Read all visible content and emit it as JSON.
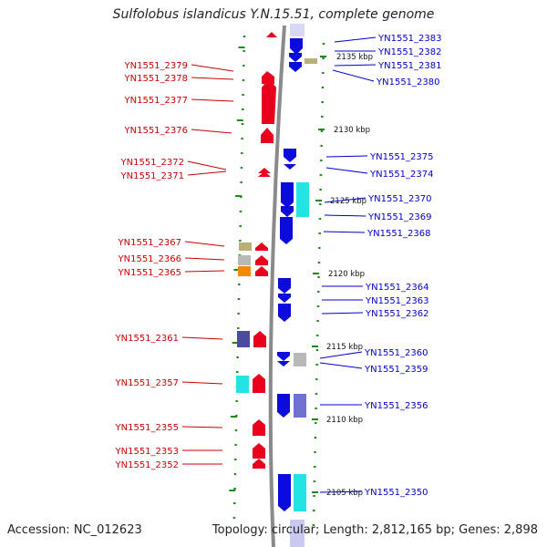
{
  "header": {
    "title": "Sulfolobus islandicus Y.N.15.51, complete genome"
  },
  "footer": {
    "accession": "Accession: NC_012623",
    "summary": "Topology: circular; Length: 2,812,165 bp; Genes: 2,898"
  },
  "colors": {
    "minus_strand": "#e8001c",
    "plus_strand": "#0b0bdc",
    "minus_label": "#cc0000",
    "plus_label": "#0000cc",
    "backbone": "#888888",
    "tick": "#1c8c1c",
    "cyan": "#22e4e4",
    "purple": "#4a4aa0",
    "lavender": "#7070d0",
    "olive": "#b8b078",
    "gray": "#b8b8b8",
    "orange": "#f08a00"
  },
  "ticks": [
    "2135 kbp",
    "2130 kbp",
    "2125 kbp",
    "2120 kbp",
    "2115 kbp",
    "2110 kbp",
    "2105 kbp"
  ],
  "genes_left": [
    {
      "id": "YN1551_2379"
    },
    {
      "id": "YN1551_2378"
    },
    {
      "id": "YN1551_2377"
    },
    {
      "id": "YN1551_2376"
    },
    {
      "id": "YN1551_2372"
    },
    {
      "id": "YN1551_2371"
    },
    {
      "id": "YN1551_2367"
    },
    {
      "id": "YN1551_2366"
    },
    {
      "id": "YN1551_2365"
    },
    {
      "id": "YN1551_2361"
    },
    {
      "id": "YN1551_2357"
    },
    {
      "id": "YN1551_2355"
    },
    {
      "id": "YN1551_2353"
    },
    {
      "id": "YN1551_2352"
    }
  ],
  "genes_right": [
    {
      "id": "YN1551_2383"
    },
    {
      "id": "YN1551_2382"
    },
    {
      "id": "YN1551_2381"
    },
    {
      "id": "YN1551_2380"
    },
    {
      "id": "YN1551_2375"
    },
    {
      "id": "YN1551_2374"
    },
    {
      "id": "YN1551_2370"
    },
    {
      "id": "YN1551_2369"
    },
    {
      "id": "YN1551_2368"
    },
    {
      "id": "YN1551_2364"
    },
    {
      "id": "YN1551_2363"
    },
    {
      "id": "YN1551_2362"
    },
    {
      "id": "YN1551_2360"
    },
    {
      "id": "YN1551_2359"
    },
    {
      "id": "YN1551_2356"
    },
    {
      "id": "YN1551_2350"
    }
  ]
}
